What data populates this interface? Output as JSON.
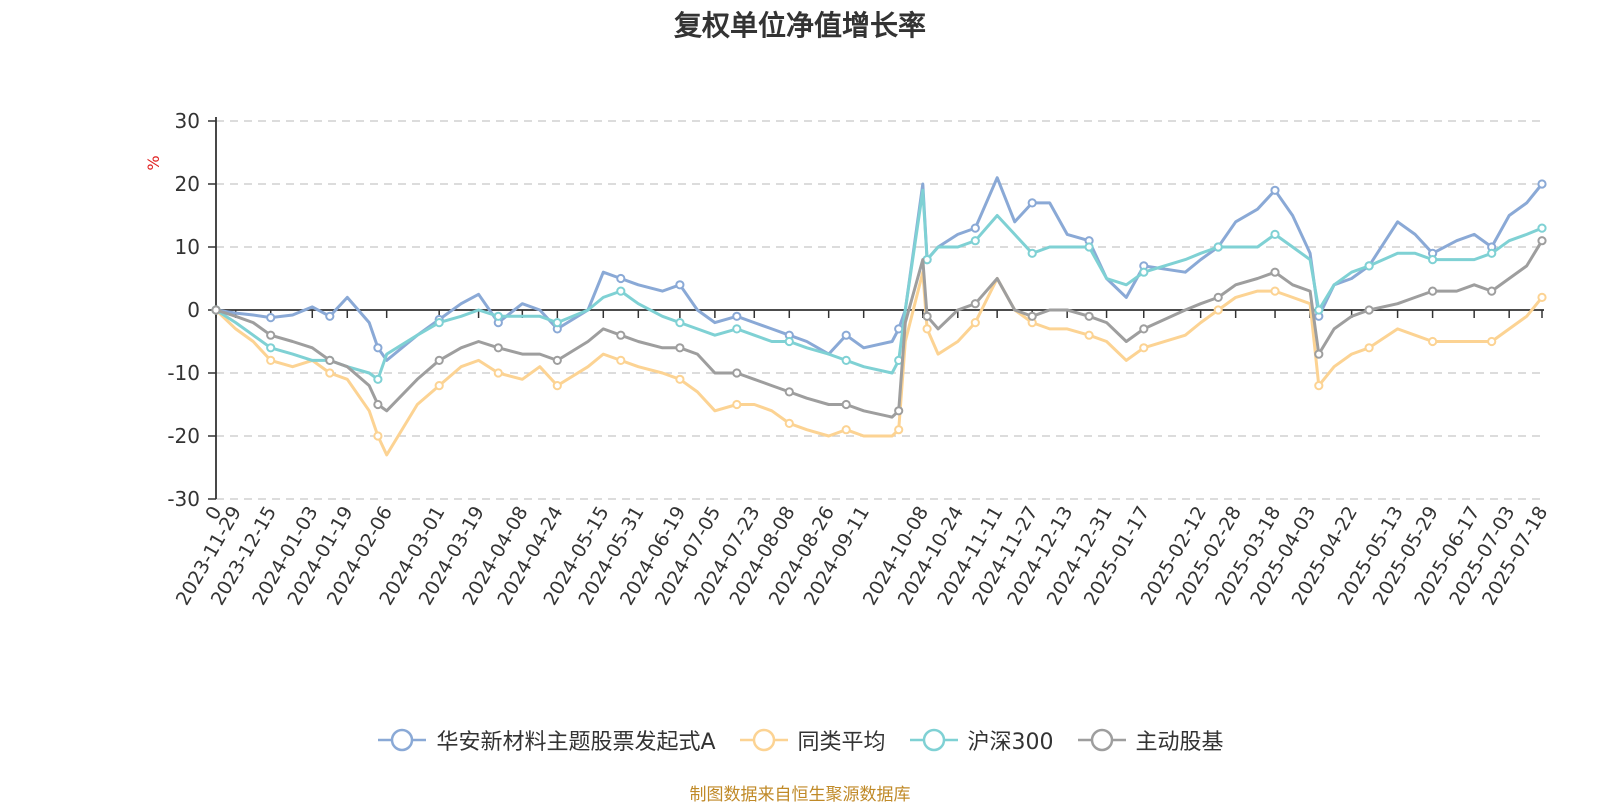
{
  "title": "复权单位净值增长率",
  "source": "制图数据来自恒生聚源数据库",
  "colors": {
    "grid": "#c8c8c8",
    "axis": "#333333",
    "unit_label": "#e02020"
  },
  "chart_data": {
    "type": "line",
    "ylabel": "%",
    "ylim": [
      -30,
      30
    ],
    "yticks": [
      -30,
      -20,
      -10,
      0,
      10,
      20,
      30
    ],
    "grid": true,
    "legend_position": "bottom-center",
    "x_tick_labels": [
      "0",
      "2023-11-29",
      "2023-12-15",
      "2024-01-03",
      "2024-01-19",
      "2024-02-06",
      "2024-03-01",
      "2024-03-19",
      "2024-04-08",
      "2024-04-24",
      "2024-05-15",
      "2024-05-31",
      "2024-06-19",
      "2024-07-05",
      "2024-07-23",
      "2024-08-08",
      "2024-08-26",
      "2024-09-11",
      "2024-10-08",
      "2024-10-24",
      "2024-11-11",
      "2024-11-27",
      "2024-12-13",
      "2024-12-31",
      "2025-01-17",
      "2025-02-12",
      "2025-02-28",
      "2025-03-18",
      "2025-04-03",
      "2025-04-22",
      "2025-05-13",
      "2025-05-29",
      "2025-06-17",
      "2025-07-03",
      "2025-07-18"
    ],
    "x": [
      "0",
      "2023-11-29",
      "2023-12-07",
      "2023-12-15",
      "2023-12-25",
      "2024-01-03",
      "2024-01-11",
      "2024-01-19",
      "2024-01-29",
      "2024-02-02",
      "2024-02-06",
      "2024-02-20",
      "2024-03-01",
      "2024-03-11",
      "2024-03-19",
      "2024-03-28",
      "2024-04-08",
      "2024-04-16",
      "2024-04-24",
      "2024-05-08",
      "2024-05-15",
      "2024-05-23",
      "2024-05-31",
      "2024-06-11",
      "2024-06-19",
      "2024-06-27",
      "2024-07-05",
      "2024-07-15",
      "2024-07-23",
      "2024-07-31",
      "2024-08-08",
      "2024-08-16",
      "2024-08-26",
      "2024-09-03",
      "2024-09-11",
      "2024-09-24",
      "2024-09-27",
      "2024-09-30",
      "2024-10-08",
      "2024-10-10",
      "2024-10-15",
      "2024-10-24",
      "2024-11-01",
      "2024-11-11",
      "2024-11-19",
      "2024-11-27",
      "2024-12-05",
      "2024-12-13",
      "2024-12-23",
      "2024-12-31",
      "2025-01-09",
      "2025-01-17",
      "2025-02-05",
      "2025-02-12",
      "2025-02-20",
      "2025-02-28",
      "2025-03-10",
      "2025-03-18",
      "2025-03-26",
      "2025-04-03",
      "2025-04-07",
      "2025-04-14",
      "2025-04-22",
      "2025-04-30",
      "2025-05-13",
      "2025-05-21",
      "2025-05-29",
      "2025-06-09",
      "2025-06-17",
      "2025-06-25",
      "2025-07-03",
      "2025-07-11",
      "2025-07-18"
    ],
    "series": [
      {
        "name": "华安新材料主题股票发起式A",
        "color": "#8aa9d6",
        "values": [
          0,
          -0.5,
          -0.8,
          -1.2,
          -0.8,
          0.5,
          -1,
          2,
          -2,
          -6,
          -8,
          -4,
          -1.5,
          1,
          2.5,
          -2,
          1,
          0,
          -3,
          0,
          6,
          5,
          4,
          3,
          4,
          0,
          -2,
          -1,
          -2,
          -3,
          -4,
          -5,
          -7,
          -4,
          -6,
          -5,
          -3,
          0,
          20,
          8,
          10,
          12,
          13,
          21,
          14,
          17,
          17,
          12,
          11,
          5,
          2,
          7,
          6,
          8,
          10,
          14,
          16,
          19,
          15,
          9,
          -1,
          4,
          5,
          7,
          14,
          12,
          9,
          11,
          12,
          10,
          15,
          17,
          20
        ]
      },
      {
        "name": "同类平均",
        "color": "#fcd393",
        "values": [
          0,
          -3,
          -5,
          -8,
          -9,
          -8,
          -10,
          -11,
          -16,
          -20,
          -23,
          -15,
          -12,
          -9,
          -8,
          -10,
          -11,
          -9,
          -12,
          -9,
          -7,
          -8,
          -9,
          -10,
          -11,
          -13,
          -16,
          -15,
          -15,
          -16,
          -18,
          -19,
          -20,
          -19,
          -20,
          -20,
          -19,
          -5,
          6,
          -3,
          -7,
          -5,
          -2,
          5,
          0,
          -2,
          -3,
          -3,
          -4,
          -5,
          -8,
          -6,
          -4,
          -2,
          0,
          2,
          3,
          3,
          2,
          1,
          -12,
          -9,
          -7,
          -6,
          -3,
          -4,
          -5,
          -5,
          -5,
          -5,
          -3,
          -1,
          2
        ]
      },
      {
        "name": "沪深300",
        "color": "#7fd1d4",
        "values": [
          0,
          -2,
          -4,
          -6,
          -7,
          -8,
          -8,
          -9,
          -10,
          -11,
          -7,
          -4,
          -2,
          -1,
          0,
          -1,
          -1,
          -1,
          -2,
          0,
          2,
          3,
          1,
          -1,
          -2,
          -3,
          -4,
          -3,
          -4,
          -5,
          -5,
          -6,
          -7,
          -8,
          -9,
          -10,
          -8,
          0,
          19,
          8,
          10,
          10,
          11,
          15,
          12,
          9,
          10,
          10,
          10,
          5,
          4,
          6,
          8,
          9,
          10,
          10,
          10,
          12,
          10,
          8,
          0,
          4,
          6,
          7,
          9,
          9,
          8,
          8,
          8,
          9,
          11,
          12,
          13
        ]
      },
      {
        "name": "主动股基",
        "color": "#9e9e9e",
        "values": [
          0,
          -1,
          -2,
          -4,
          -5,
          -6,
          -8,
          -9,
          -12,
          -15,
          -16,
          -11,
          -8,
          -6,
          -5,
          -6,
          -7,
          -7,
          -8,
          -5,
          -3,
          -4,
          -5,
          -6,
          -6,
          -7,
          -10,
          -10,
          -11,
          -12,
          -13,
          -14,
          -15,
          -15,
          -16,
          -17,
          -16,
          -2,
          8,
          -1,
          -3,
          0,
          1,
          5,
          0,
          -1,
          0,
          0,
          -1,
          -2,
          -5,
          -3,
          0,
          1,
          2,
          4,
          5,
          6,
          4,
          3,
          -7,
          -3,
          -1,
          0,
          1,
          2,
          3,
          3,
          4,
          3,
          5,
          7,
          11
        ]
      }
    ]
  }
}
